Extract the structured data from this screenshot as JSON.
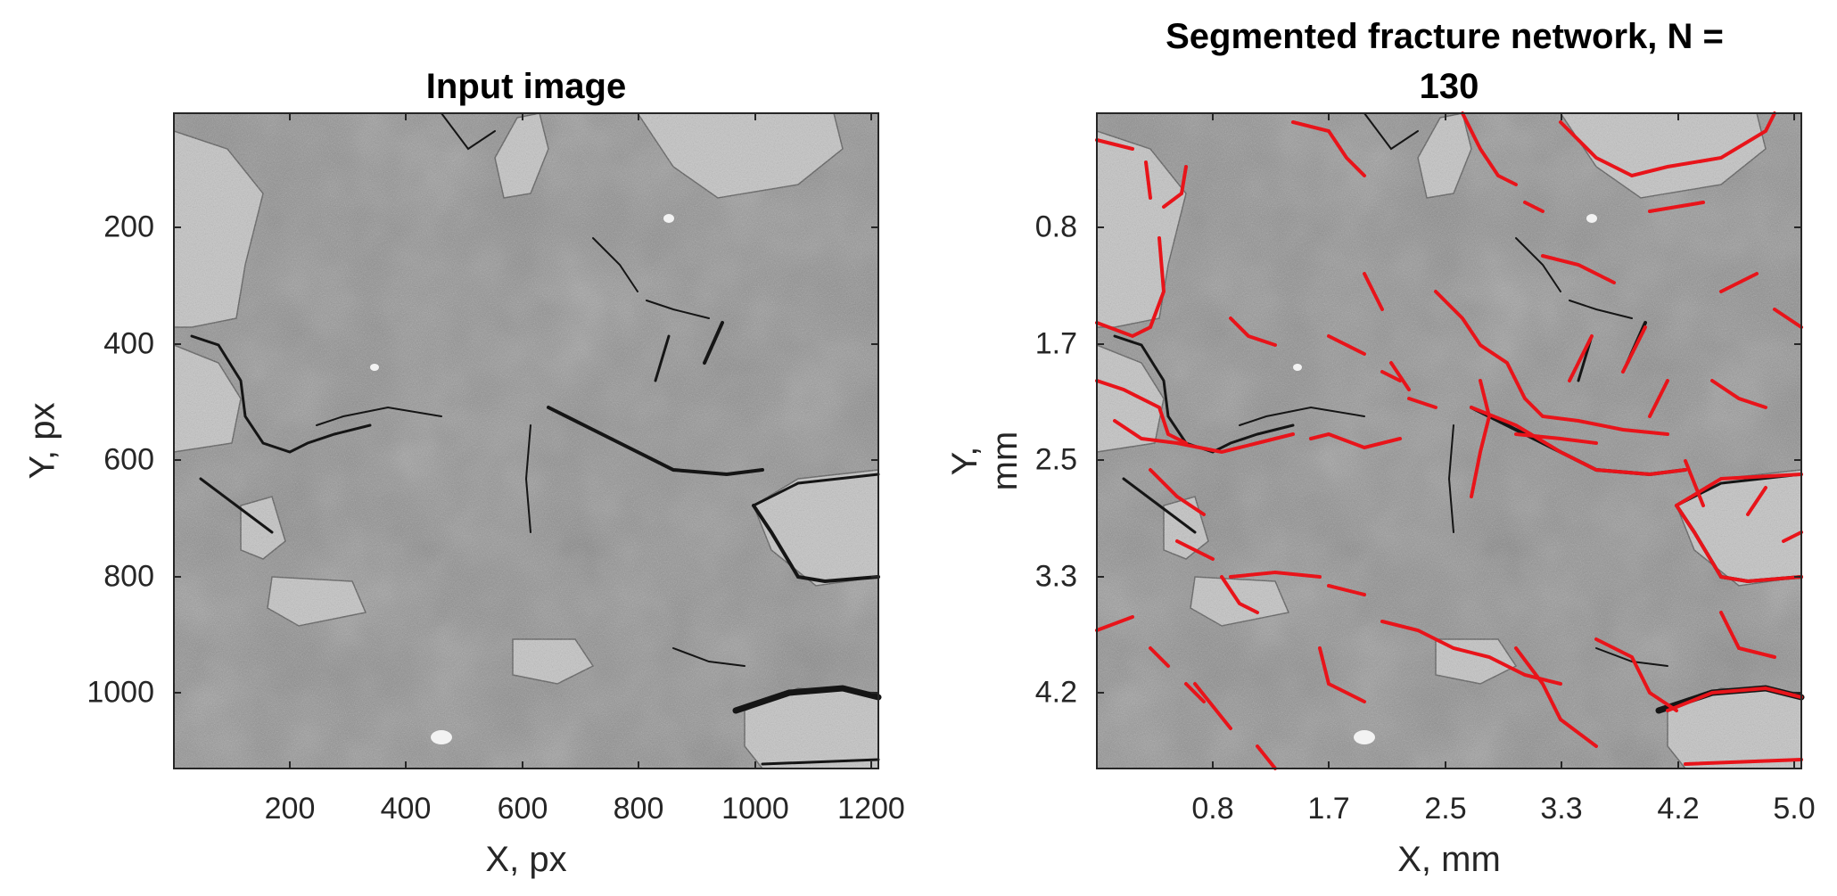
{
  "panels": [
    {
      "title": "Input image",
      "xlabel": "X, px",
      "ylabel": "Y, px",
      "xticks": [
        "200",
        "400",
        "600",
        "800",
        "1000",
        "1200"
      ],
      "yticks": [
        "200",
        "400",
        "600",
        "800",
        "1000"
      ]
    },
    {
      "title_line1": "Segmented fracture network, N =",
      "title_line2": "130",
      "xlabel": "X, mm",
      "ylabel": "Y, mm",
      "xticks": [
        "0.8",
        "1.7",
        "2.5",
        "3.3",
        "4.2",
        "5.0"
      ],
      "yticks": [
        "0.8",
        "1.7",
        "2.5",
        "3.3",
        "4.2"
      ]
    }
  ],
  "colors": {
    "overlay": "#e8141a",
    "grain_light": "#c8c8c8",
    "matrix": "#8d8d8d",
    "crack": "#151515"
  }
}
